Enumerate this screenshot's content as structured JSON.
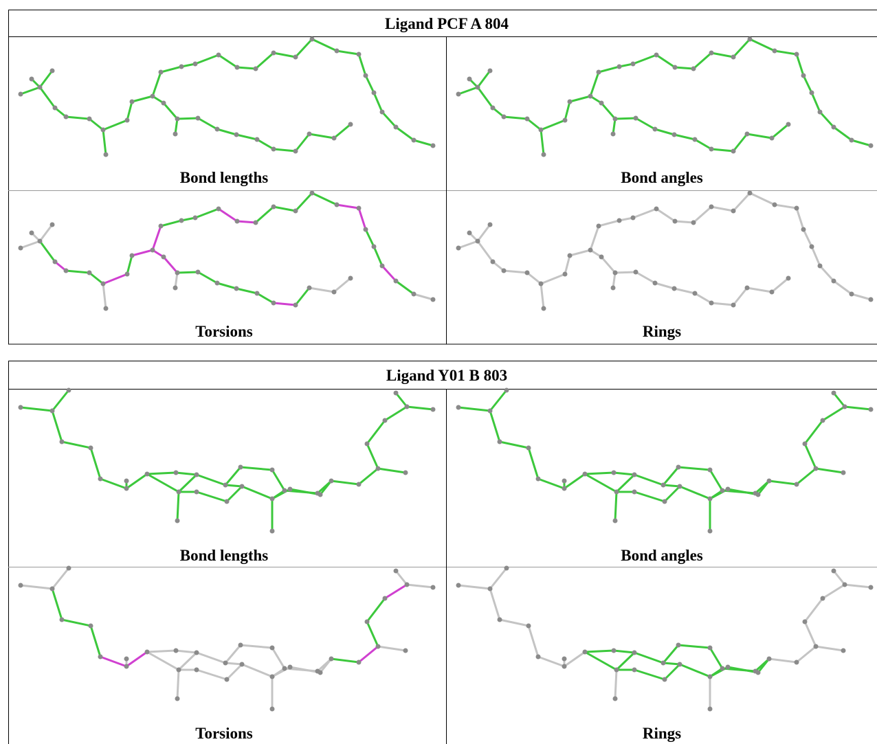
{
  "tables": [
    {
      "title": "Ligand PCF A 804",
      "panels": [
        "Bond lengths",
        "Bond angles",
        "Torsions",
        "Rings"
      ]
    },
    {
      "title": "Ligand Y01 B 803",
      "panels": [
        "Bond lengths",
        "Bond angles",
        "Torsions",
        "Rings"
      ]
    }
  ]
}
